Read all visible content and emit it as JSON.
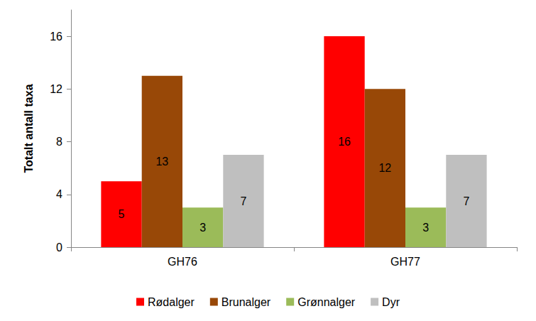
{
  "chart_data": {
    "type": "bar",
    "y_label": "Totalt antall taxa",
    "categories": [
      "GH76",
      "GH77"
    ],
    "series": [
      {
        "name": "Rødalger",
        "color": "#ff0000",
        "values": [
          5,
          16
        ]
      },
      {
        "name": "Brunalger",
        "color": "#984807",
        "values": [
          13,
          12
        ]
      },
      {
        "name": "Grønnalger",
        "color": "#9bbb59",
        "values": [
          3,
          3
        ]
      },
      {
        "name": "Dyr",
        "color": "#bfbfbf",
        "values": [
          7,
          7
        ]
      }
    ],
    "ylim": [
      0,
      18
    ],
    "yticks": [
      0,
      4,
      8,
      12,
      16
    ],
    "grid": false,
    "legend": "bottom",
    "data_labels": true
  }
}
